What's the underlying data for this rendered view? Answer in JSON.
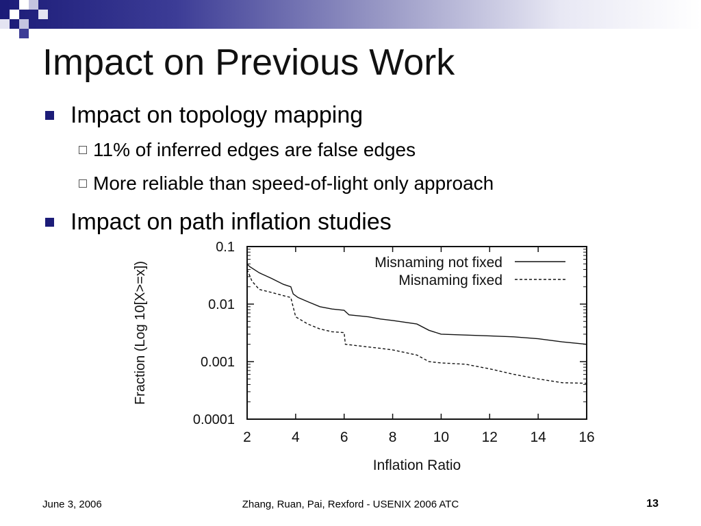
{
  "slide": {
    "title": "Impact on Previous Work",
    "bullets": [
      {
        "text": "Impact on topology mapping",
        "sub": [
          "11% of inferred edges are false edges",
          "More reliable than speed-of-light only approach"
        ]
      },
      {
        "text": "Impact on path inflation studies"
      }
    ],
    "footer": {
      "date": "June 3, 2006",
      "authors": "Zhang, Ruan, Pai, Rexford - USENIX 2006 ATC",
      "page": "13"
    }
  },
  "colors": {
    "accent": "#1c1c78",
    "header_gradient_end": "#ffffff"
  },
  "chart_data": {
    "type": "line",
    "xlabel": "Inflation Ratio",
    "ylabel": "Fraction (Log 10[X>=x])",
    "xlim": [
      2,
      16
    ],
    "ylim": [
      0.0001,
      0.1
    ],
    "yscale": "log",
    "xticks": [
      2,
      4,
      6,
      8,
      10,
      12,
      14,
      16
    ],
    "yticks": [
      {
        "value": 0.1,
        "label": "0.1"
      },
      {
        "value": 0.01,
        "label": "0.01"
      },
      {
        "value": 0.001,
        "label": "0.001"
      },
      {
        "value": 0.0001,
        "label": "0.0001"
      }
    ],
    "legend_position": "top-right",
    "series": [
      {
        "name": "Misnaming not fixed",
        "style": "solid",
        "x": [
          2,
          2.1,
          2.5,
          3,
          3.5,
          3.8,
          3.9,
          4.1,
          4.5,
          5,
          5.5,
          6,
          6.2,
          7,
          7.5,
          8,
          9,
          9.5,
          10,
          11,
          12,
          13,
          14,
          15,
          16
        ],
        "y": [
          0.05,
          0.045,
          0.035,
          0.028,
          0.022,
          0.02,
          0.015,
          0.013,
          0.011,
          0.009,
          0.0082,
          0.0078,
          0.0065,
          0.006,
          0.0055,
          0.0052,
          0.0045,
          0.0035,
          0.003,
          0.0029,
          0.0028,
          0.0027,
          0.0025,
          0.0022,
          0.002
        ]
      },
      {
        "name": "Misnaming fixed",
        "style": "dashed",
        "x": [
          2,
          2.2,
          2.5,
          3,
          3.5,
          3.8,
          4,
          4.5,
          5,
          5.5,
          6,
          6.05,
          7,
          7.5,
          8,
          9,
          9.5,
          10,
          11,
          12,
          13,
          14,
          15,
          16
        ],
        "y": [
          0.04,
          0.025,
          0.018,
          0.016,
          0.014,
          0.013,
          0.006,
          0.0045,
          0.0037,
          0.0033,
          0.0032,
          0.002,
          0.0018,
          0.0017,
          0.0016,
          0.0013,
          0.001,
          0.00095,
          0.0009,
          0.00075,
          0.0006,
          0.0005,
          0.00043,
          0.00042
        ]
      }
    ]
  }
}
